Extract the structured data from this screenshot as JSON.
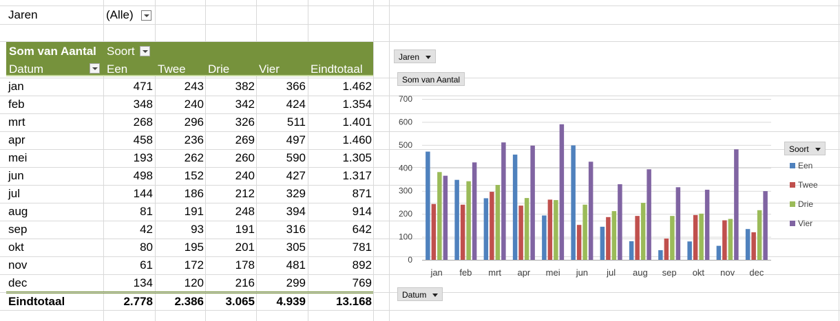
{
  "filter": {
    "label": "Jaren",
    "value": "(Alle)"
  },
  "pivot": {
    "corner_label": "Som van Aantal",
    "column_field": "Soort",
    "row_field": "Datum",
    "columns": [
      "Een",
      "Twee",
      "Drie",
      "Vier",
      "Eindtotaal"
    ],
    "rows": [
      {
        "label": "jan",
        "cells": [
          "471",
          "243",
          "382",
          "366",
          "1.462"
        ]
      },
      {
        "label": "feb",
        "cells": [
          "348",
          "240",
          "342",
          "424",
          "1.354"
        ]
      },
      {
        "label": "mrt",
        "cells": [
          "268",
          "296",
          "326",
          "511",
          "1.401"
        ]
      },
      {
        "label": "apr",
        "cells": [
          "458",
          "236",
          "269",
          "497",
          "1.460"
        ]
      },
      {
        "label": "mei",
        "cells": [
          "193",
          "262",
          "260",
          "590",
          "1.305"
        ]
      },
      {
        "label": "jun",
        "cells": [
          "498",
          "152",
          "240",
          "427",
          "1.317"
        ]
      },
      {
        "label": "jul",
        "cells": [
          "144",
          "186",
          "212",
          "329",
          "871"
        ]
      },
      {
        "label": "aug",
        "cells": [
          "81",
          "191",
          "248",
          "394",
          "914"
        ]
      },
      {
        "label": "sep",
        "cells": [
          "42",
          "93",
          "191",
          "316",
          "642"
        ]
      },
      {
        "label": "okt",
        "cells": [
          "80",
          "195",
          "201",
          "305",
          "781"
        ]
      },
      {
        "label": "nov",
        "cells": [
          "61",
          "172",
          "178",
          "481",
          "892"
        ]
      },
      {
        "label": "dec",
        "cells": [
          "134",
          "120",
          "216",
          "299",
          "769"
        ]
      }
    ],
    "total": {
      "label": "Eindtotaal",
      "cells": [
        "2.778",
        "2.386",
        "3.065",
        "4.939",
        "13.168"
      ]
    }
  },
  "chart_buttons": {
    "filter": "Jaren",
    "value": "Som van Aantal",
    "legend": "Soort",
    "axis": "Datum"
  },
  "colors": {
    "header_bg": "#76923c",
    "header_line": "#c4d79b",
    "Een": "#4f81bd",
    "Twee": "#c0504d",
    "Drie": "#9bbb59",
    "Vier": "#8064a2"
  },
  "chart_data": {
    "type": "bar",
    "categories": [
      "jan",
      "feb",
      "mrt",
      "apr",
      "mei",
      "jun",
      "jul",
      "aug",
      "sep",
      "okt",
      "nov",
      "dec"
    ],
    "series": [
      {
        "name": "Een",
        "values": [
          471,
          348,
          268,
          458,
          193,
          498,
          144,
          81,
          42,
          80,
          61,
          134
        ]
      },
      {
        "name": "Twee",
        "values": [
          243,
          240,
          296,
          236,
          262,
          152,
          186,
          191,
          93,
          195,
          172,
          120
        ]
      },
      {
        "name": "Drie",
        "values": [
          382,
          342,
          326,
          269,
          260,
          240,
          212,
          248,
          191,
          201,
          178,
          216
        ]
      },
      {
        "name": "Vier",
        "values": [
          366,
          424,
          511,
          497,
          590,
          427,
          329,
          394,
          316,
          305,
          481,
          299
        ]
      }
    ],
    "yticks": [
      "0",
      "100",
      "200",
      "300",
      "400",
      "500",
      "600",
      "700"
    ],
    "ylim": [
      0,
      700
    ],
    "grid": true,
    "legend_position": "right"
  }
}
